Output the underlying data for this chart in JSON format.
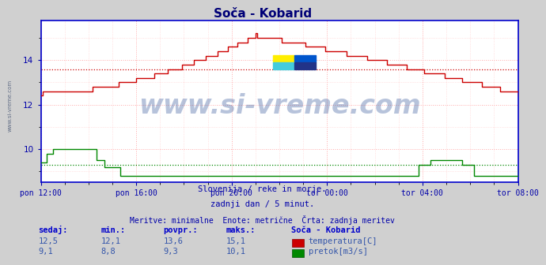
{
  "title": "Soča - Kobarid",
  "bg_color": "#d0d0d0",
  "plot_bg_color": "#ffffff",
  "grid_color": "#ffaaaa",
  "axis_color": "#0000cc",
  "text_color": "#0000aa",
  "temp_color": "#cc0000",
  "flow_color": "#008800",
  "avg_temp": 13.6,
  "avg_flow": 9.3,
  "ylim": [
    8.5,
    15.8
  ],
  "yticks": [
    10,
    12,
    14
  ],
  "xtick_labels": [
    "pon 12:00",
    "pon 16:00",
    "pon 20:00",
    "tor 00:00",
    "tor 04:00",
    "tor 08:00"
  ],
  "xtick_positions": [
    0,
    48,
    96,
    144,
    192,
    240
  ],
  "watermark": "www.si-vreme.com",
  "subtitle1": "Slovenija / reke in morje.",
  "subtitle2": "zadnji dan / 5 minut.",
  "subtitle3": "Meritve: minimalne  Enote: metrične  Črta: zadnja meritev",
  "legend_title": "Soča - Kobarid",
  "legend_temp": "temperatura[C]",
  "legend_flow": "pretok[m3/s]",
  "table_headers": [
    "sedaj:",
    "min.:",
    "povpr.:",
    "maks.:"
  ],
  "table_temp": [
    "12,5",
    "12,1",
    "13,6",
    "15,1"
  ],
  "table_flow": [
    "9,1",
    "8,8",
    "9,3",
    "10,1"
  ],
  "side_label": "www.si-vreme.com"
}
